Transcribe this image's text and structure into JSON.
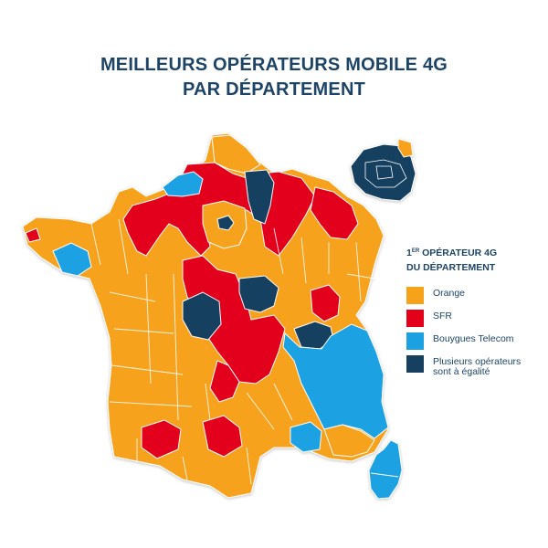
{
  "title": {
    "line1": "MEILLEURS OPÉRATEURS MOBILE 4G",
    "line2": "PAR DÉPARTEMENT"
  },
  "legend": {
    "title_prefix": "1",
    "title_sup": "ER",
    "title_rest": " OPÉRATEUR 4G",
    "title_line2": "DU DÉPARTEMENT",
    "items": [
      {
        "label": "Orange",
        "color": "#f7a21b"
      },
      {
        "label": "SFR",
        "color": "#e2001a"
      },
      {
        "label": "Bouygues Telecom",
        "color": "#1ba1e2"
      },
      {
        "label": "Plusieurs opérateurs\nsont à égalité",
        "color": "#173f5f"
      }
    ]
  },
  "colors": {
    "title": "#1d4466",
    "orange": "#f7a21b",
    "sfr": "#e2001a",
    "bouygues": "#1ba1e2",
    "tie": "#173f5f",
    "border": "#ffffff"
  },
  "map": {
    "description_regions": [
      {
        "operator": "orange"
      },
      {
        "operator": "sfr"
      },
      {
        "operator": "bouygues"
      },
      {
        "operator": "tie"
      }
    ]
  }
}
